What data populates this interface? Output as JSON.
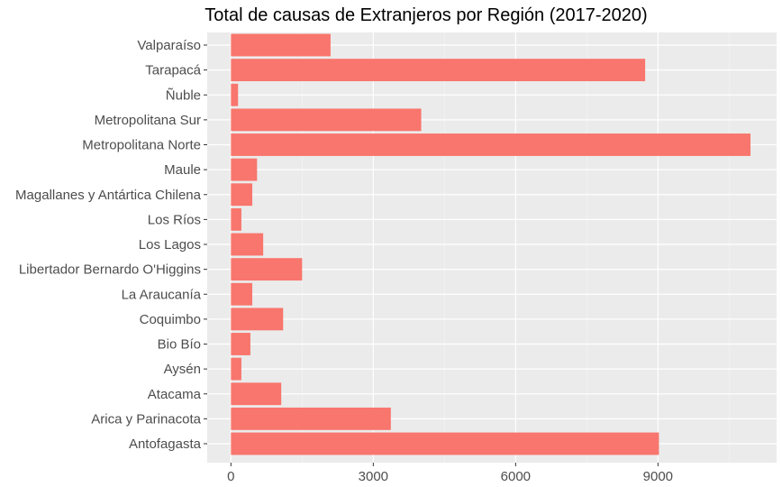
{
  "chart_data": {
    "type": "bar",
    "orientation": "horizontal",
    "title": "Total de causas de Extranjeros por Región (2017-2020)",
    "xlabel": "",
    "ylabel": "",
    "categories": [
      "Valparaíso",
      "Tarapacá",
      "Ñuble",
      "Metropolitana Sur",
      "Metropolitana Norte",
      "Maule",
      "Magallanes y Antártica Chilena",
      "Los Ríos",
      "Los Lagos",
      "Libertador Bernardo O'Higgins",
      "La Araucanía",
      "Coquimbo",
      "Bio Bío",
      "Aysén",
      "Atacama",
      "Arica y Parinacota",
      "Antofagasta"
    ],
    "values": [
      2100,
      8730,
      150,
      4010,
      10950,
      550,
      450,
      220,
      680,
      1500,
      450,
      1100,
      410,
      220,
      1060,
      3370,
      9020
    ],
    "xlim": [
      -500,
      11500
    ],
    "xticks": [
      0,
      3000,
      6000,
      9000
    ],
    "bar_color": "#F8766D",
    "panel_color": "#EBEBEB",
    "grid": true,
    "legend": "none"
  }
}
